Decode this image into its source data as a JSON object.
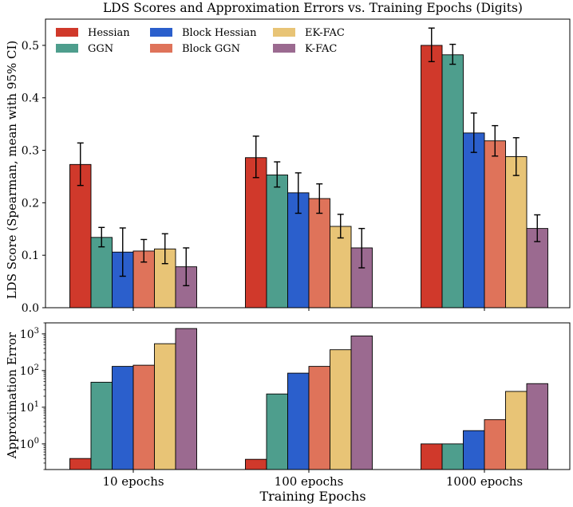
{
  "title": "LDS Scores and Approximation Errors vs. Training Epochs (Digits)",
  "colors": {
    "Hessian": "#d0392b",
    "GGN": "#4e9e8d",
    "Block Hessian": "#2b5fcc",
    "Block GGN": "#df735a",
    "EK-FAC": "#e8c476",
    "K-FAC": "#9b6a90"
  },
  "chart_data": [
    {
      "type": "bar",
      "title": "LDS Scores and Approximation Errors vs. Training Epochs (Digits)",
      "xlabel": "",
      "ylabel": "LDS Score (Spearman, mean with 95% CI)",
      "ylim": [
        0,
        0.55
      ],
      "yticks": [
        "0.0",
        "0.1",
        "0.2",
        "0.3",
        "0.4",
        "0.5"
      ],
      "legend": "top-left",
      "grid": false,
      "categories": [
        "10 epochs",
        "100 epochs",
        "1000 epochs"
      ],
      "series": [
        {
          "name": "Hessian",
          "values": [
            0.273,
            0.286,
            0.5
          ],
          "ci_low": [
            0.233,
            0.248,
            0.469
          ],
          "ci_high": [
            0.314,
            0.327,
            0.533
          ]
        },
        {
          "name": "GGN",
          "values": [
            0.134,
            0.253,
            0.482
          ],
          "ci_low": [
            0.116,
            0.23,
            0.464
          ],
          "ci_high": [
            0.153,
            0.278,
            0.502
          ]
        },
        {
          "name": "Block Hessian",
          "values": [
            0.106,
            0.219,
            0.333
          ],
          "ci_low": [
            0.06,
            0.18,
            0.296
          ],
          "ci_high": [
            0.152,
            0.257,
            0.371
          ]
        },
        {
          "name": "Block GGN",
          "values": [
            0.108,
            0.208,
            0.318
          ],
          "ci_low": [
            0.087,
            0.18,
            0.289
          ],
          "ci_high": [
            0.13,
            0.236,
            0.347
          ]
        },
        {
          "name": "EK-FAC",
          "values": [
            0.112,
            0.155,
            0.288
          ],
          "ci_low": [
            0.084,
            0.133,
            0.252
          ],
          "ci_high": [
            0.141,
            0.178,
            0.324
          ]
        },
        {
          "name": "K-FAC",
          "values": [
            0.078,
            0.114,
            0.151
          ],
          "ci_low": [
            0.042,
            0.076,
            0.126
          ],
          "ci_high": [
            0.114,
            0.151,
            0.177
          ]
        }
      ]
    },
    {
      "type": "bar",
      "title": "",
      "xlabel": "Training Epochs",
      "ylabel": "Approximation Error",
      "yscale": "log",
      "ylim": [
        0.2,
        2000
      ],
      "yticks": [
        1,
        10,
        100,
        1000
      ],
      "grid": false,
      "categories": [
        "10 epochs",
        "100 epochs",
        "1000 epochs"
      ],
      "series": [
        {
          "name": "Hessian",
          "values": [
            0.4,
            0.38,
            1.0
          ]
        },
        {
          "name": "GGN",
          "values": [
            48,
            23,
            1.0
          ]
        },
        {
          "name": "Block Hessian",
          "values": [
            130,
            85,
            2.3
          ]
        },
        {
          "name": "Block GGN",
          "values": [
            140,
            130,
            4.6
          ]
        },
        {
          "name": "EK-FAC",
          "values": [
            540,
            370,
            27
          ]
        },
        {
          "name": "K-FAC",
          "values": [
            1400,
            880,
            44
          ]
        }
      ]
    }
  ]
}
